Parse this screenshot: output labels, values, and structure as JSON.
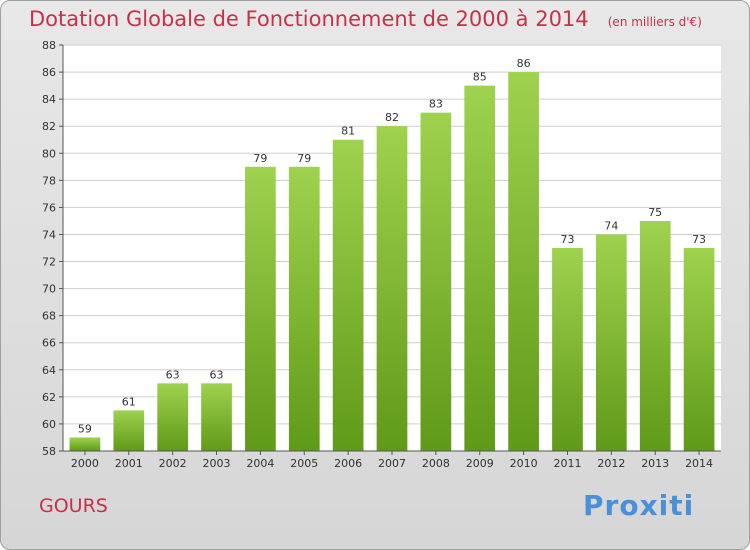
{
  "title": "Dotation Globale de Fonctionnement de 2000 à 2014",
  "unit_note": "(en milliers d'€)",
  "place_name": "GOURS",
  "logo_text": "Proxiti",
  "colors": {
    "title": "#c8304a",
    "bar_light": "#9fd24e",
    "bar_dark": "#5f9a18",
    "grid": "#cfcfcf",
    "axis": "#555555",
    "plot_bg": "#ffffff"
  },
  "chart_data": {
    "type": "bar",
    "title": "Dotation Globale de Fonctionnement de 2000 à 2014",
    "xlabel": "",
    "ylabel": "",
    "categories": [
      "2000",
      "2001",
      "2002",
      "2003",
      "2004",
      "2005",
      "2006",
      "2007",
      "2008",
      "2009",
      "2010",
      "2011",
      "2012",
      "2013",
      "2014"
    ],
    "values": [
      59,
      61,
      63,
      63,
      79,
      79,
      81,
      82,
      83,
      85,
      86,
      73,
      74,
      75,
      73
    ],
    "ylim": [
      58,
      88
    ],
    "yticks": [
      58,
      60,
      62,
      64,
      66,
      68,
      70,
      72,
      74,
      76,
      78,
      80,
      82,
      84,
      86,
      88
    ],
    "grid": true,
    "legend": "none"
  }
}
